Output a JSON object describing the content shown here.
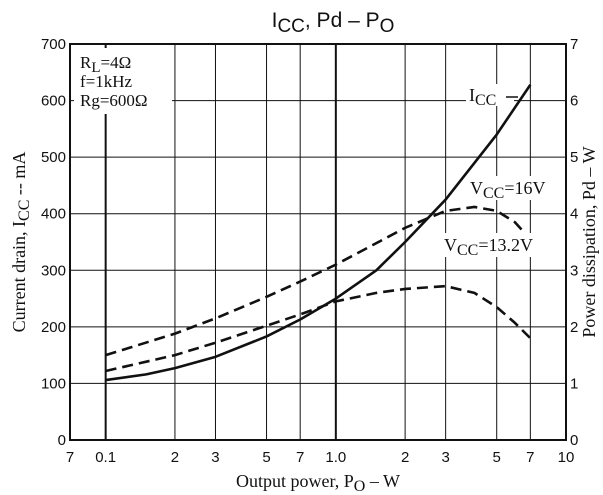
{
  "chart_data": {
    "type": "line",
    "title": {
      "main": "I",
      "sub1": "CC",
      "mid": ", Pd – P",
      "sub2": "O"
    },
    "x_axis": {
      "label_main": "Output power, P",
      "label_sub": "O",
      "label_tail": " – W",
      "scale": "log",
      "range": [
        0.07,
        10
      ],
      "ticks": [
        {
          "v": 0.07,
          "t": "7"
        },
        {
          "v": 0.1,
          "t": "0.1"
        },
        {
          "v": 0.2,
          "t": "2"
        },
        {
          "v": 0.3,
          "t": "3"
        },
        {
          "v": 0.5,
          "t": "5"
        },
        {
          "v": 0.7,
          "t": "7"
        },
        {
          "v": 1.0,
          "t": "1.0"
        },
        {
          "v": 2,
          "t": "2"
        },
        {
          "v": 3,
          "t": "3"
        },
        {
          "v": 5,
          "t": "5"
        },
        {
          "v": 7,
          "t": "7"
        },
        {
          "v": 10,
          "t": "10"
        }
      ],
      "bold_lines": [
        0.1,
        1.0
      ]
    },
    "y_left": {
      "label_main": "Current drain, I",
      "label_sub": "CC",
      "label_tail": " -- mA",
      "range": [
        0,
        700
      ],
      "ticks": [
        {
          "v": 0,
          "t": "0"
        },
        {
          "v": 100,
          "t": "100"
        },
        {
          "v": 200,
          "t": "200"
        },
        {
          "v": 300,
          "t": "300"
        },
        {
          "v": 400,
          "t": "400"
        },
        {
          "v": 500,
          "t": "500"
        },
        {
          "v": 600,
          "t": "600"
        },
        {
          "v": 700,
          "t": "700"
        }
      ]
    },
    "y_right": {
      "label": "Power dissipation, Pd – W",
      "range": [
        0,
        7
      ],
      "ticks": [
        {
          "v": 0,
          "t": "0"
        },
        {
          "v": 1,
          "t": "1"
        },
        {
          "v": 2,
          "t": "2"
        },
        {
          "v": 3,
          "t": "3"
        },
        {
          "v": 4,
          "t": "4"
        },
        {
          "v": 5,
          "t": "5"
        },
        {
          "v": 6,
          "t": "6"
        },
        {
          "v": 7,
          "t": "7"
        }
      ]
    },
    "grid": true,
    "conditions": {
      "line1_main": "R",
      "line1_sub": "L",
      "line1_tail": "=4Ω",
      "line2": "f=1kHz",
      "line3": "Rg=600Ω"
    },
    "series": [
      {
        "name_main": "I",
        "name_sub": "CC",
        "name_tail": "",
        "axis": "left",
        "style": "solid",
        "x": [
          0.1,
          0.15,
          0.2,
          0.3,
          0.5,
          0.7,
          1.0,
          1.5,
          2,
          3,
          5,
          7
        ],
        "y": [
          106,
          116,
          127,
          147,
          183,
          213,
          250,
          300,
          350,
          425,
          540,
          628
        ]
      },
      {
        "name_main": "V",
        "name_sub": "CC",
        "name_tail": "=16V",
        "axis": "right",
        "style": "dashed",
        "x": [
          0.1,
          0.2,
          0.3,
          0.5,
          0.7,
          1.0,
          1.5,
          2,
          3,
          4,
          5,
          6,
          7
        ],
        "y": [
          1.5,
          1.88,
          2.15,
          2.53,
          2.8,
          3.1,
          3.48,
          3.75,
          4.05,
          4.12,
          4.05,
          3.85,
          3.55
        ]
      },
      {
        "name_main": "V",
        "name_sub": "CC",
        "name_tail": "=13.2V",
        "axis": "right",
        "style": "dashed",
        "x": [
          0.1,
          0.2,
          0.3,
          0.5,
          0.7,
          1.0,
          1.5,
          2,
          3,
          4,
          5,
          6,
          7
        ],
        "y": [
          1.22,
          1.5,
          1.72,
          2.02,
          2.22,
          2.45,
          2.6,
          2.67,
          2.72,
          2.6,
          2.35,
          2.07,
          1.8
        ]
      }
    ]
  }
}
